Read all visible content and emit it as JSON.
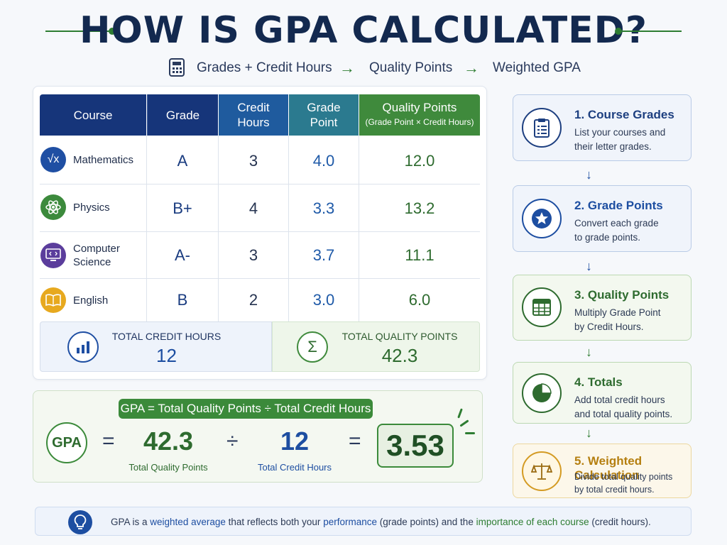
{
  "title": "HOW IS GPA CALCULATED?",
  "subtitle": {
    "part1": "Grades + Credit Hours",
    "arrow": "→",
    "part2": "Quality Points",
    "part3": "Weighted GPA"
  },
  "table": {
    "headers": {
      "course": "Course",
      "grade": "Grade",
      "credit_line1": "Credit",
      "credit_line2": "Hours",
      "gp_line1": "Grade",
      "gp_line2": "Point",
      "qp_line1": "Quality Points",
      "qp_line2": "(Grade Point × Credit Hours)"
    },
    "rows": [
      {
        "course_line1": "Mathematics",
        "course_line2": "",
        "grade": "A",
        "credit": "3",
        "grade_point": "4.0",
        "quality_points": "12.0",
        "icon": "square-root-icon",
        "color": "#1f4fa3"
      },
      {
        "course_line1": "Physics",
        "course_line2": "",
        "grade": "B+",
        "credit": "4",
        "grade_point": "3.3",
        "quality_points": "13.2",
        "icon": "atom-icon",
        "color": "#3c8a3c"
      },
      {
        "course_line1": "Computer",
        "course_line2": "Science",
        "grade": "A-",
        "credit": "3",
        "grade_point": "3.7",
        "quality_points": "11.1",
        "icon": "computer-code-icon",
        "color": "#5b3d9c"
      },
      {
        "course_line1": "English",
        "course_line2": "",
        "grade": "B",
        "credit": "2",
        "grade_point": "3.0",
        "quality_points": "6.0",
        "icon": "book-icon",
        "color": "#e7a91f"
      }
    ],
    "totals": {
      "credit_label": "TOTAL CREDIT HOURS",
      "credit_value": "12",
      "quality_label": "TOTAL QUALITY POINTS",
      "quality_value": "42.3",
      "sigma": "Σ"
    }
  },
  "formula": {
    "pill": "GPA = Total Quality Points ÷ Total Credit Hours",
    "gpa": "GPA",
    "equals": "=",
    "divide": "÷",
    "qp_value": "42.3",
    "qp_label": "Total Quality Points",
    "ch_value": "12",
    "ch_label": "Total Credit Hours",
    "result": "3.53"
  },
  "steps": [
    {
      "title": "1. Course Grades",
      "desc_line1": "List your courses and",
      "desc_line2": "their letter grades.",
      "icon": "clipboard-icon",
      "color": "#1d3f80"
    },
    {
      "title": "2. Grade Points",
      "desc_line1": "Convert each grade",
      "desc_line2": "to grade points.",
      "icon": "star-badge-icon",
      "color": "#1d4ea1"
    },
    {
      "title": "3. Quality Points",
      "desc_line1": "Multiply Grade Point",
      "desc_line2": "by Credit Hours.",
      "icon": "grid-table-icon",
      "color": "#2e6b2f"
    },
    {
      "title": "4. Totals",
      "desc_line1": "Add total credit hours",
      "desc_line2": "and total quality points.",
      "icon": "pie-chart-icon",
      "color": "#2e6b2f"
    },
    {
      "title": "5. Weighted Calculation",
      "desc_line1": "Divide total quality points",
      "desc_line2": "by total credit hours.",
      "icon": "balance-scale-icon",
      "color": "#b57f10"
    }
  ],
  "footer": {
    "t1": "GPA is a ",
    "t2": "weighted average",
    "t3": " that reflects both your ",
    "t4": "performance",
    "t5": " (grade points) and the ",
    "t6": "importance of each course",
    "t7": " (credit hours)."
  },
  "colors": {
    "navy": "#16357a",
    "green": "#3f8a3c",
    "teal": "#2b7a8f",
    "gold": "#e7a91f"
  }
}
